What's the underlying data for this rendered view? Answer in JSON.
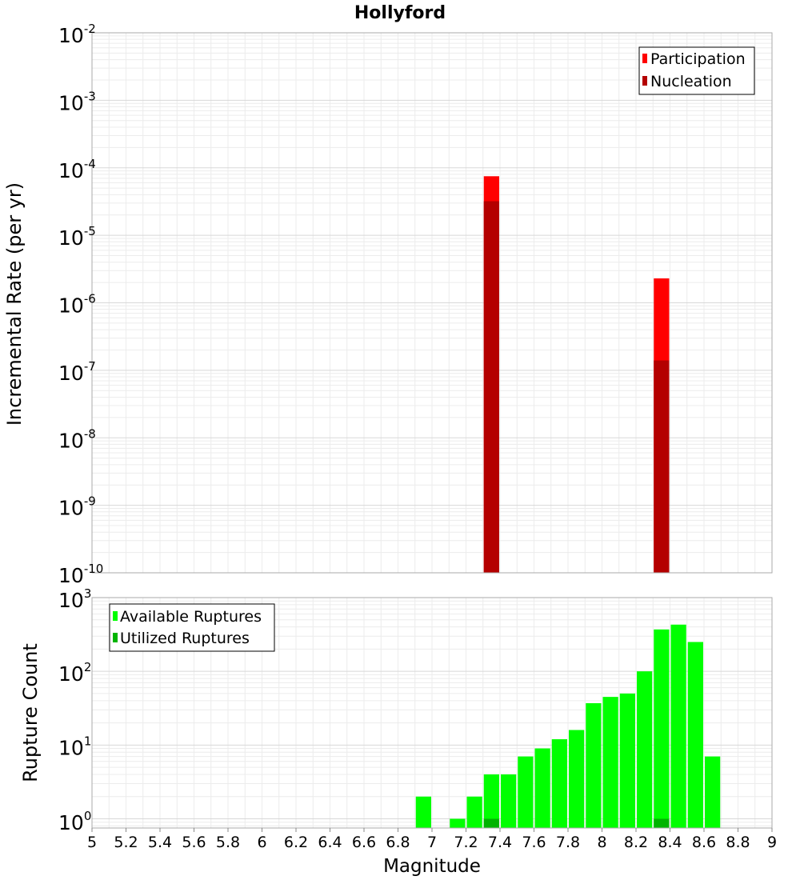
{
  "chart_data": [
    {
      "type": "bar",
      "title": "Hollyford",
      "ylabel": "Incremental Rate (per yr)",
      "xlabel": "",
      "xlim": [
        5,
        9
      ],
      "ylim": [
        1e-10,
        0.01
      ],
      "yscale": "log",
      "ytick_labels": [
        {
          "base": "10",
          "exp": "-2"
        },
        {
          "base": "10",
          "exp": "-3"
        },
        {
          "base": "10",
          "exp": "-4"
        },
        {
          "base": "10",
          "exp": "-5"
        },
        {
          "base": "10",
          "exp": "-6"
        },
        {
          "base": "10",
          "exp": "-7"
        },
        {
          "base": "10",
          "exp": "-8"
        },
        {
          "base": "10",
          "exp": "-9"
        },
        {
          "base": "10",
          "exp": "-10"
        }
      ],
      "grid": true,
      "legend_position": "top-right",
      "bar_width": 0.1,
      "series": [
        {
          "name": "Participation",
          "color": "#ff0000",
          "x": [
            7.35,
            8.35
          ],
          "values": [
            7.5e-05,
            2.3e-06
          ]
        },
        {
          "name": "Nucleation",
          "color": "#b40000",
          "x": [
            7.35,
            8.35
          ],
          "values": [
            3.2e-05,
            1.4e-07
          ]
        }
      ]
    },
    {
      "type": "bar",
      "title": "",
      "ylabel": "Rupture Count",
      "xlabel": "Magnitude",
      "xlim": [
        5,
        9
      ],
      "ylim": [
        0.75,
        1000
      ],
      "yscale": "log",
      "ytick_labels": [
        {
          "base": "10",
          "exp": "3"
        },
        {
          "base": "10",
          "exp": "2"
        },
        {
          "base": "10",
          "exp": "1"
        },
        {
          "base": "10",
          "exp": "0"
        }
      ],
      "xtick_labels": [
        "5",
        "5.2",
        "5.4",
        "5.6",
        "5.8",
        "6",
        "6.2",
        "6.4",
        "6.6",
        "6.8",
        "7",
        "7.2",
        "7.4",
        "7.6",
        "7.8",
        "8",
        "8.2",
        "8.4",
        "8.6",
        "8.8",
        "9"
      ],
      "grid": true,
      "legend_position": "top-left",
      "bar_width": 0.1,
      "series": [
        {
          "name": "Available Ruptures",
          "color": "#00ff00",
          "x": [
            6.95,
            7.15,
            7.25,
            7.35,
            7.45,
            7.55,
            7.65,
            7.75,
            7.85,
            7.95,
            8.05,
            8.15,
            8.25,
            8.35,
            8.45,
            8.55,
            8.65
          ],
          "values": [
            2,
            1,
            2,
            4,
            4,
            7,
            9,
            12,
            16,
            37,
            45,
            50,
            100,
            370,
            430,
            250,
            7
          ]
        },
        {
          "name": "Utilized Ruptures",
          "color": "#00b400",
          "x": [
            7.35,
            8.35
          ],
          "values": [
            1,
            1
          ]
        }
      ]
    }
  ]
}
